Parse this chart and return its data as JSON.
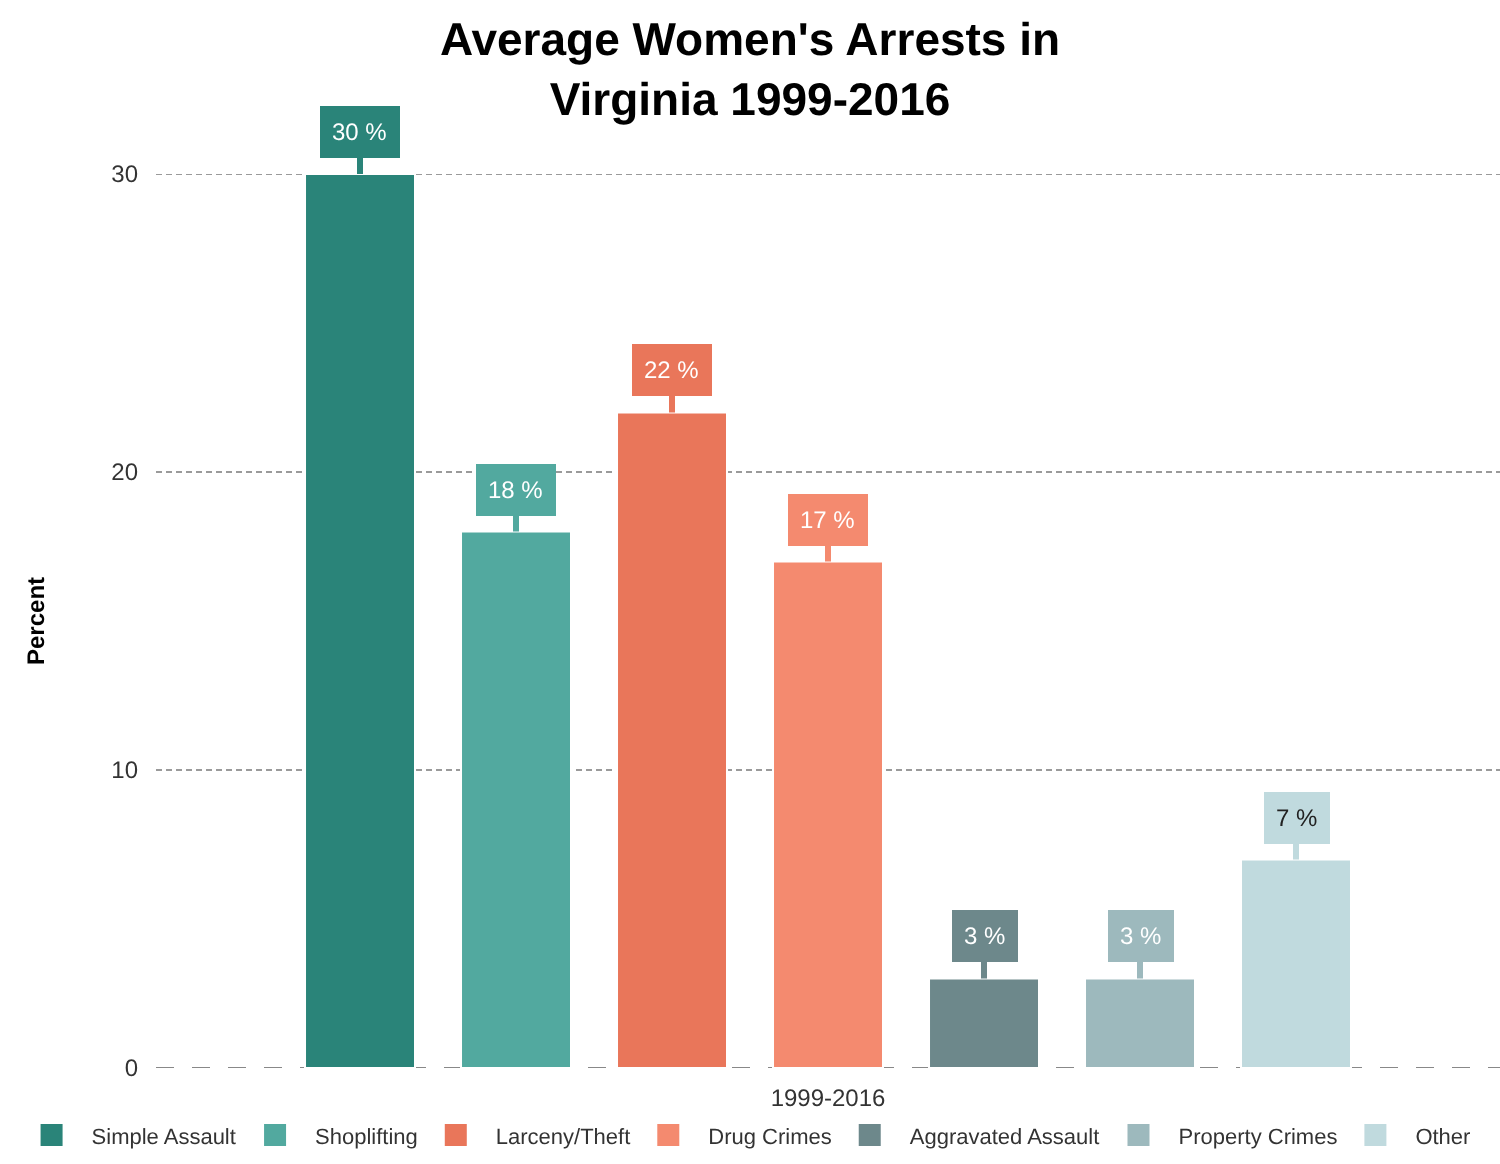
{
  "chart_data": {
    "type": "bar",
    "title": "Average Women's Arrests in\nVirginia 1999-2016",
    "ylabel": "Percent",
    "categories": [
      "1999-2016"
    ],
    "series": [
      {
        "name": "Simple Assault",
        "color": "#2a8479",
        "values": [
          30
        ],
        "value_labels": [
          "30 %"
        ]
      },
      {
        "name": "Shoplifting",
        "color": "#52a99f",
        "values": [
          18
        ],
        "value_labels": [
          "18 %"
        ]
      },
      {
        "name": "Larceny/Theft",
        "color": "#e9765a",
        "values": [
          22
        ],
        "value_labels": [
          "22 %"
        ]
      },
      {
        "name": "Drug Crimes",
        "color": "#f48a6f",
        "values": [
          17
        ],
        "value_labels": [
          "17 %"
        ]
      },
      {
        "name": "Aggravated Assault",
        "color": "#6d888b",
        "values": [
          3
        ],
        "value_labels": [
          "3 %"
        ]
      },
      {
        "name": "Property Crimes",
        "color": "#9db9bd",
        "values": [
          3
        ],
        "value_labels": [
          "3 %"
        ]
      },
      {
        "name": "Other",
        "color": "#c0dade",
        "values": [
          7
        ],
        "value_labels": [
          "7 %"
        ]
      }
    ],
    "ylim": [
      0,
      30
    ],
    "yticks": [
      0,
      10,
      20,
      30
    ],
    "grid": "y",
    "legend": "bottom"
  }
}
